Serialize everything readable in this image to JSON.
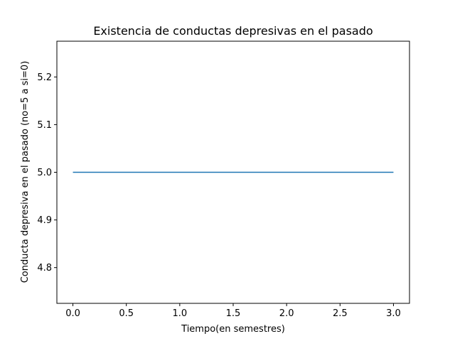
{
  "chart_data": {
    "type": "line",
    "title": "Existencia de conductas depresivas en el pasado",
    "xlabel": "Tiempo(en semestres)",
    "ylabel": "Conducta depresiva en el pasado (no=5 a si=0)",
    "xlim": [
      -0.15,
      3.15
    ],
    "ylim": [
      4.725,
      5.275
    ],
    "xticks": [
      0.0,
      0.5,
      1.0,
      1.5,
      2.0,
      2.5,
      3.0
    ],
    "xtick_labels": [
      "0.0",
      "0.5",
      "1.0",
      "1.5",
      "2.0",
      "2.5",
      "3.0"
    ],
    "yticks": [
      4.8,
      4.9,
      5.0,
      5.1,
      5.2
    ],
    "ytick_labels": [
      "4.8",
      "4.9",
      "5.0",
      "5.1",
      "5.2"
    ],
    "grid": false,
    "series": [
      {
        "x": [
          0,
          1,
          2,
          3
        ],
        "y": [
          5,
          5,
          5,
          5
        ],
        "color": "#1f77b4"
      }
    ]
  }
}
